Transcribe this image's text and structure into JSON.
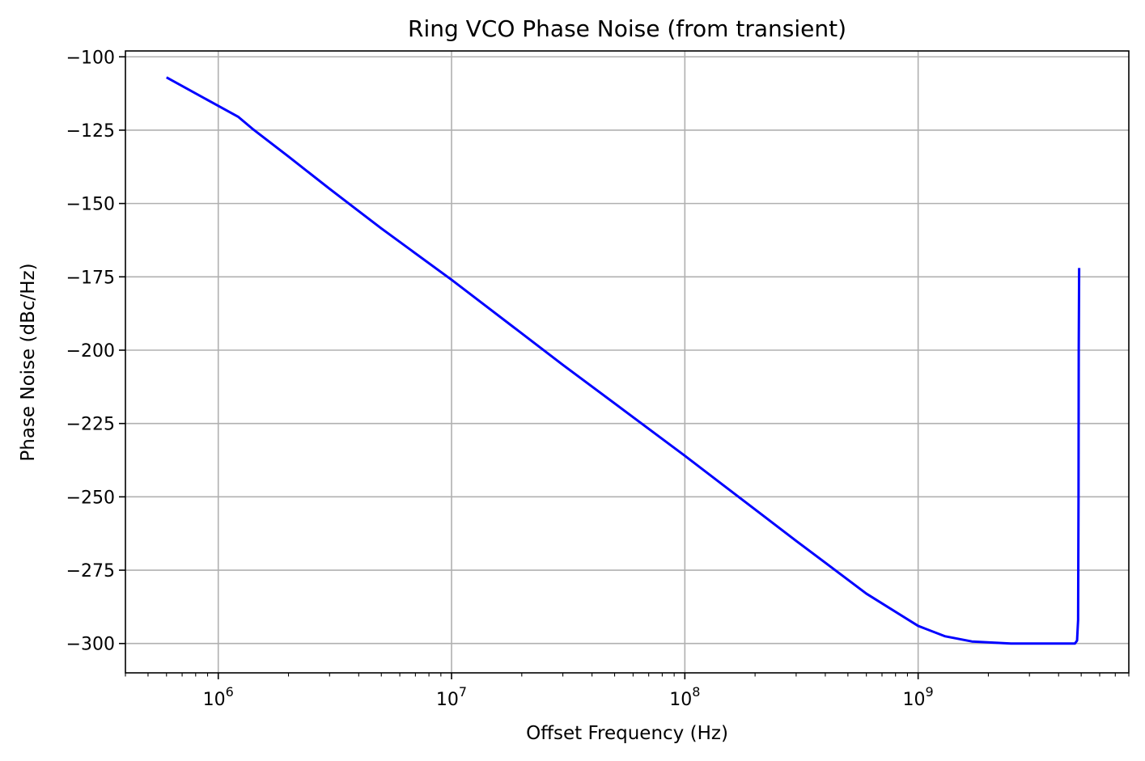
{
  "chart_data": {
    "type": "line",
    "title": "Ring VCO Phase Noise (from transient)",
    "xlabel": "Offset Frequency (Hz)",
    "ylabel": "Phase Noise (dBc/Hz)",
    "xscale": "log",
    "xlim": [
      400000,
      8000000000
    ],
    "ylim": [
      -310,
      -98
    ],
    "grid": true,
    "x_ticks": [
      {
        "value": 1000000,
        "base": "10",
        "exp": "6"
      },
      {
        "value": 10000000,
        "base": "10",
        "exp": "7"
      },
      {
        "value": 100000000,
        "base": "10",
        "exp": "8"
      },
      {
        "value": 1000000000,
        "base": "10",
        "exp": "9"
      }
    ],
    "y_ticks": [
      {
        "value": -100,
        "label": "−100"
      },
      {
        "value": -125,
        "label": "−125"
      },
      {
        "value": -150,
        "label": "−150"
      },
      {
        "value": -175,
        "label": "−175"
      },
      {
        "value": -200,
        "label": "−200"
      },
      {
        "value": -225,
        "label": "−225"
      },
      {
        "value": -250,
        "label": "−250"
      },
      {
        "value": -275,
        "label": "−275"
      },
      {
        "value": -300,
        "label": "−300"
      }
    ],
    "series": [
      {
        "color": "#0000ff",
        "x": [
          600000,
          1220000,
          1400000,
          2000000,
          3000000,
          5000000,
          10000000,
          30000000,
          100000000,
          300000000,
          600000000,
          1000000000,
          1300000000,
          1700000000,
          2500000000,
          4000000000,
          4700000000,
          4800000000,
          4850000000,
          4870000000,
          4880000000,
          4900000000
        ],
        "y": [
          -107,
          -120.5,
          -124.5,
          -134,
          -145,
          -158.5,
          -176,
          -205,
          -236,
          -265,
          -283,
          -294,
          -297.5,
          -299.3,
          -300,
          -300,
          -300,
          -299,
          -292,
          -250,
          -200,
          -172
        ]
      }
    ]
  }
}
